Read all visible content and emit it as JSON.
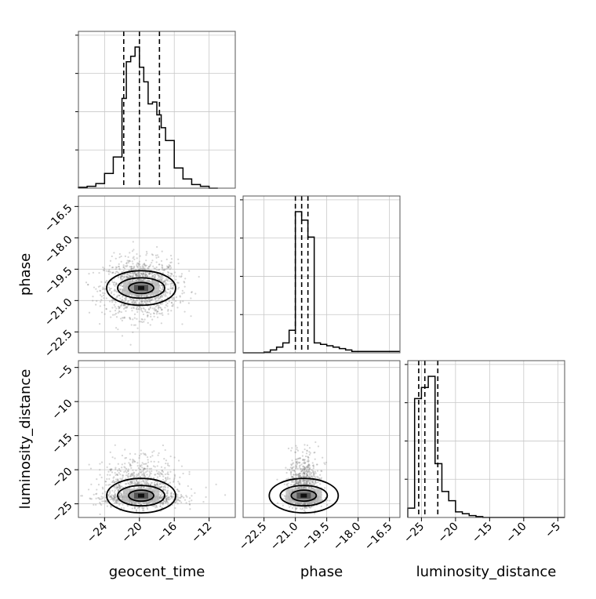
{
  "chart_data": {
    "type": "corner",
    "parameters": [
      "geocent_time",
      "phase",
      "luminosity_distance"
    ],
    "axis_labels": {
      "geocent_time": "geocent_time",
      "phase": "phase",
      "luminosity_distance": "luminosity_distance"
    },
    "ranges": {
      "geocent_time": [
        -27,
        -9
      ],
      "phase": [
        -23.5,
        -16.0
      ],
      "luminosity_distance": [
        -27,
        -4
      ]
    },
    "ticks": {
      "geocent_time": [
        "-24",
        "-20",
        "-16",
        "-12"
      ],
      "phase": [
        "-22.5",
        "-21.0",
        "-19.5",
        "-18.0",
        "-16.5"
      ],
      "luminosity_distance": [
        "-25",
        "-20",
        "-15",
        "-10",
        "-5"
      ]
    },
    "tick_values": {
      "geocent_time": [
        -24,
        -20,
        -16,
        -12
      ],
      "phase": [
        -22.5,
        -21.0,
        -19.5,
        -18.0,
        -16.5
      ],
      "luminosity_distance": [
        -25,
        -20,
        -15,
        -10,
        -5
      ]
    },
    "quantiles": {
      "geocent_time": [
        -21.8,
        -20.0,
        -17.7
      ],
      "phase": [
        -21.0,
        -20.7,
        -20.4
      ],
      "luminosity_distance": [
        -25.4,
        -24.5,
        -22.6
      ]
    },
    "histograms": {
      "geocent_time": {
        "bin_edges": [
          -27,
          -26,
          -25,
          -24,
          -23,
          -22,
          -21.5,
          -21,
          -20.5,
          -20,
          -19.5,
          -19,
          -18.5,
          -18,
          -17.5,
          -17,
          -16,
          -15,
          -14,
          -13,
          -12,
          -11
        ],
        "counts": [
          0.5,
          1,
          2.5,
          8,
          17,
          49,
          69,
          72,
          77,
          66,
          58,
          46,
          47,
          40,
          33,
          26,
          11,
          5,
          2,
          1,
          0
        ]
      },
      "phase": {
        "bin_edges": [
          -23.5,
          -22.5,
          -22.2,
          -21.9,
          -21.6,
          -21.3,
          -21.0,
          -20.7,
          -20.4,
          -20.1,
          -19.8,
          -19.5,
          -19.2,
          -18.9,
          -18.6,
          -18.3,
          -16.0
        ],
        "counts": [
          0,
          0.5,
          2,
          4,
          7,
          16,
          100,
          94,
          82,
          7,
          6,
          5,
          4,
          3,
          2,
          1
        ]
      },
      "luminosity_distance": {
        "bin_edges": [
          -27,
          -26,
          -25,
          -24,
          -23,
          -22,
          -21,
          -20,
          -19,
          -18,
          -17,
          -16,
          -4
        ],
        "counts": [
          5,
          64,
          70,
          76,
          29,
          14,
          9,
          3,
          2,
          1,
          0.5,
          0
        ]
      }
    },
    "density": {
      "phase_vs_geocent_time": {
        "center": [
          -19.8,
          -20.4
        ],
        "spread": [
          2.8,
          0.9
        ]
      },
      "luminosity_distance_vs_geocent_time": {
        "center": [
          -19.8,
          -23.8
        ],
        "spread": [
          3.0,
          2.2
        ]
      },
      "luminosity_distance_vs_phase": {
        "center": [
          -20.6,
          -23.8
        ],
        "spread": [
          0.5,
          2.2
        ]
      }
    },
    "grid": true
  }
}
